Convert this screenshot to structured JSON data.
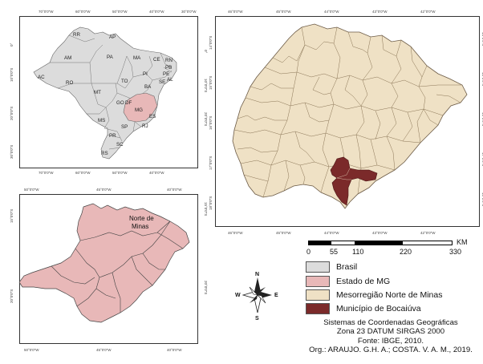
{
  "colors": {
    "brasil": "#dcdcdc",
    "estado_mg": "#e8b8b8",
    "mesorregiao": "#efe1c5",
    "municipio": "#7b2a2a",
    "border": "#555555"
  },
  "map_brazil": {
    "lon_ticks": [
      "70°0'0\"W",
      "60°0'0\"W",
      "50°0'0\"W",
      "40°0'0\"W",
      "30°0'0\"W"
    ],
    "lat_ticks": [
      "0°",
      "10°0'0\"S",
      "20°0'0\"S",
      "30°0'0\"S"
    ],
    "states": [
      "RR",
      "AP",
      "AM",
      "PA",
      "MA",
      "CE",
      "RN",
      "PB",
      "PE",
      "AL",
      "SE",
      "PI",
      "TO",
      "BA",
      "AC",
      "RO",
      "MT",
      "GO",
      "DF",
      "MG",
      "ES",
      "MS",
      "SP",
      "RJ",
      "PR",
      "SC",
      "RS"
    ]
  },
  "map_mg": {
    "lon_ticks": [
      "50°0'0\"W",
      "45°0'0\"W",
      "40°0'0\"W"
    ],
    "lat_ticks": [
      "15°0'0\"S",
      "20°0'0\"S"
    ],
    "region_label_line1": "Norte de",
    "region_label_line2": "Minas"
  },
  "map_norte": {
    "lon_ticks": [
      "46°0'0\"W",
      "45°0'0\"W",
      "44°0'0\"W",
      "43°0'0\"W",
      "42°0'0\"W"
    ],
    "lat_ticks": [
      "14°0'0\"S",
      "15°0'0\"S",
      "16°0'0\"S",
      "17°0'0\"S",
      "18°0'0\"S"
    ]
  },
  "scale_bar": {
    "unit": "KM",
    "labels": [
      "0",
      "55",
      "110",
      "220",
      "330"
    ]
  },
  "north_arrow": {
    "n": "N",
    "s": "S",
    "e": "E",
    "w": "W"
  },
  "legend": [
    {
      "label": "Brasil",
      "color": "#dcdcdc"
    },
    {
      "label": "Estado de MG",
      "color": "#e8b8b8"
    },
    {
      "label": "Mesorregião Norte de Minas",
      "color": "#efe1c5"
    },
    {
      "label": "Município de Bocaiúva",
      "color": "#7b2a2a"
    }
  ],
  "credits": {
    "line1": "Sistemas de Coordenadas Geográficas",
    "line2": "Zona 23 DATUM SIRGAS 2000",
    "line3": "Fonte: IBGE, 2010.",
    "line4": "Org.: ARAUJO. G.H. A.;  COSTA. V. A. M., 2019."
  }
}
